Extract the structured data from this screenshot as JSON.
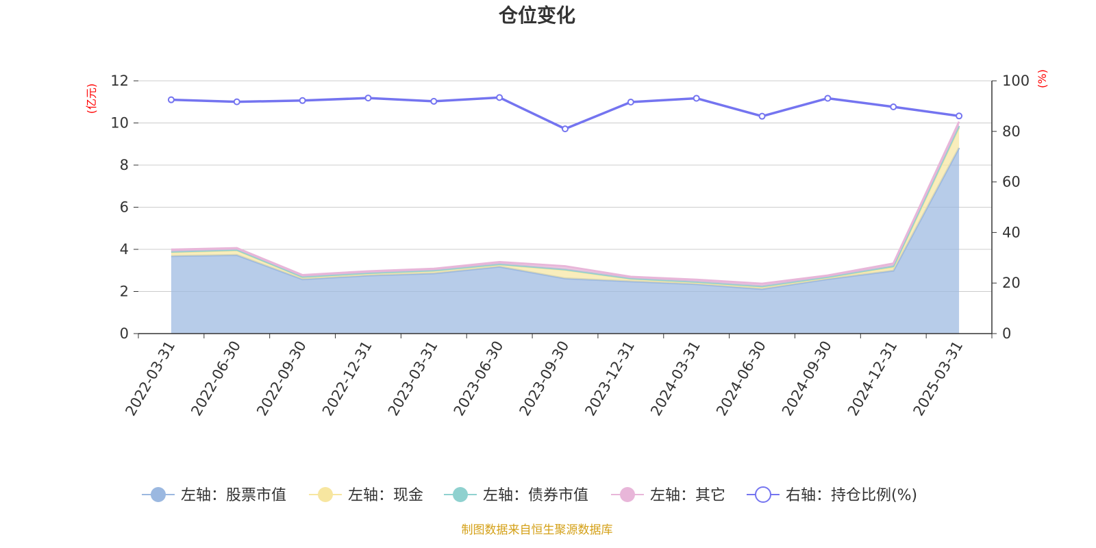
{
  "chart_data": {
    "type": "area",
    "title": "仓位变化",
    "categories": [
      "2022-03-31",
      "2022-06-30",
      "2022-09-30",
      "2022-12-31",
      "2023-03-31",
      "2023-06-30",
      "2023-09-30",
      "2023-12-31",
      "2024-03-31",
      "2024-06-30",
      "2024-09-30",
      "2024-12-31",
      "2025-03-31"
    ],
    "left_axis": {
      "unit": "(亿元)",
      "ylim": [
        0,
        12
      ],
      "ticks": [
        0,
        2,
        4,
        6,
        8,
        10,
        12
      ]
    },
    "right_axis": {
      "unit": "(%)",
      "ylim": [
        0,
        100
      ],
      "ticks": [
        0,
        20,
        40,
        60,
        80,
        100
      ]
    },
    "stacked": true,
    "series": [
      {
        "name": "左轴：股票市值",
        "axis": "left",
        "color": "#9bb8e0",
        "values": [
          3.68,
          3.73,
          2.58,
          2.76,
          2.86,
          3.18,
          2.62,
          2.48,
          2.35,
          2.12,
          2.59,
          2.99,
          8.82
        ]
      },
      {
        "name": "左轴：现金",
        "axis": "left",
        "color": "#f7e6a0",
        "values": [
          0.18,
          0.22,
          0.1,
          0.1,
          0.12,
          0.1,
          0.4,
          0.12,
          0.08,
          0.1,
          0.08,
          0.16,
          0.96
        ]
      },
      {
        "name": "左轴：债券市值",
        "axis": "left",
        "color": "#8fd1cf",
        "values": [
          0.03,
          0.03,
          0.02,
          0.02,
          0.02,
          0.02,
          0.03,
          0.02,
          0.03,
          0.03,
          0.02,
          0.06,
          0.08
        ]
      },
      {
        "name": "左轴：其它",
        "axis": "left",
        "color": "#e8b6d9",
        "values": [
          0.1,
          0.08,
          0.08,
          0.08,
          0.08,
          0.1,
          0.15,
          0.08,
          0.1,
          0.12,
          0.07,
          0.12,
          0.2
        ]
      },
      {
        "name": "右轴：持仓比例(%)",
        "axis": "right",
        "color": "#7474f0",
        "type": "line",
        "values": [
          92.5,
          91.7,
          92.2,
          93.2,
          91.9,
          93.4,
          81.0,
          91.6,
          93.1,
          86.0,
          93.1,
          89.7,
          86.1
        ]
      }
    ],
    "legend_position": "bottom",
    "grid": true
  },
  "footer": {
    "source": "制图数据来自恒生聚源数据库"
  }
}
